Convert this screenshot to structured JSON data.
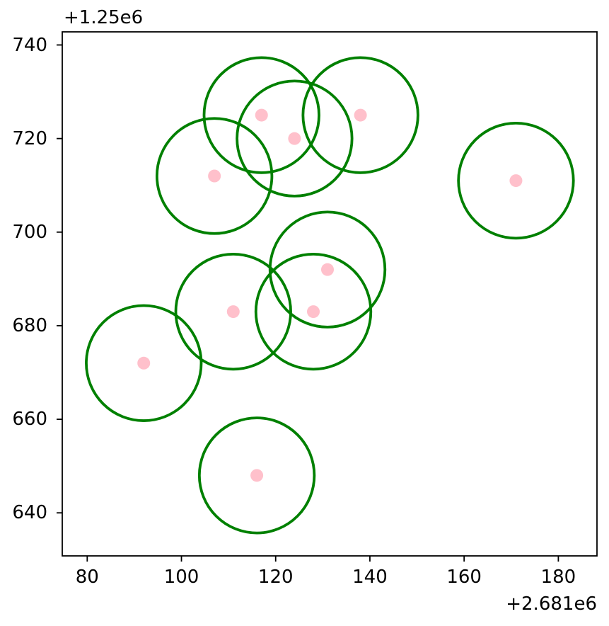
{
  "chart_data": {
    "type": "scatter",
    "title": "",
    "xlabel": "",
    "ylabel": "",
    "grid": false,
    "legend": null,
    "x_offset_label": "+2.681e6",
    "y_offset_label": "+1.25e6",
    "x_offset_value": 2681000,
    "y_offset_value": 1250000,
    "xticks": [
      80,
      100,
      120,
      140,
      160,
      180
    ],
    "yticks": [
      640,
      660,
      680,
      700,
      720,
      740
    ],
    "xlim": [
      74.7,
      188.2
    ],
    "ylim": [
      630.8,
      742.8
    ],
    "points": [
      {
        "x": 117,
        "y": 725
      },
      {
        "x": 124,
        "y": 720
      },
      {
        "x": 138,
        "y": 725
      },
      {
        "x": 107,
        "y": 712
      },
      {
        "x": 171,
        "y": 711
      },
      {
        "x": 131,
        "y": 692
      },
      {
        "x": 111,
        "y": 683
      },
      {
        "x": 128,
        "y": 683
      },
      {
        "x": 92,
        "y": 672
      },
      {
        "x": 116,
        "y": 648
      }
    ],
    "circle_radius_data_units": 12.2,
    "colors": {
      "circle_stroke": "#008000",
      "point_fill": "#ffc0cb",
      "axis": "#000000"
    }
  }
}
